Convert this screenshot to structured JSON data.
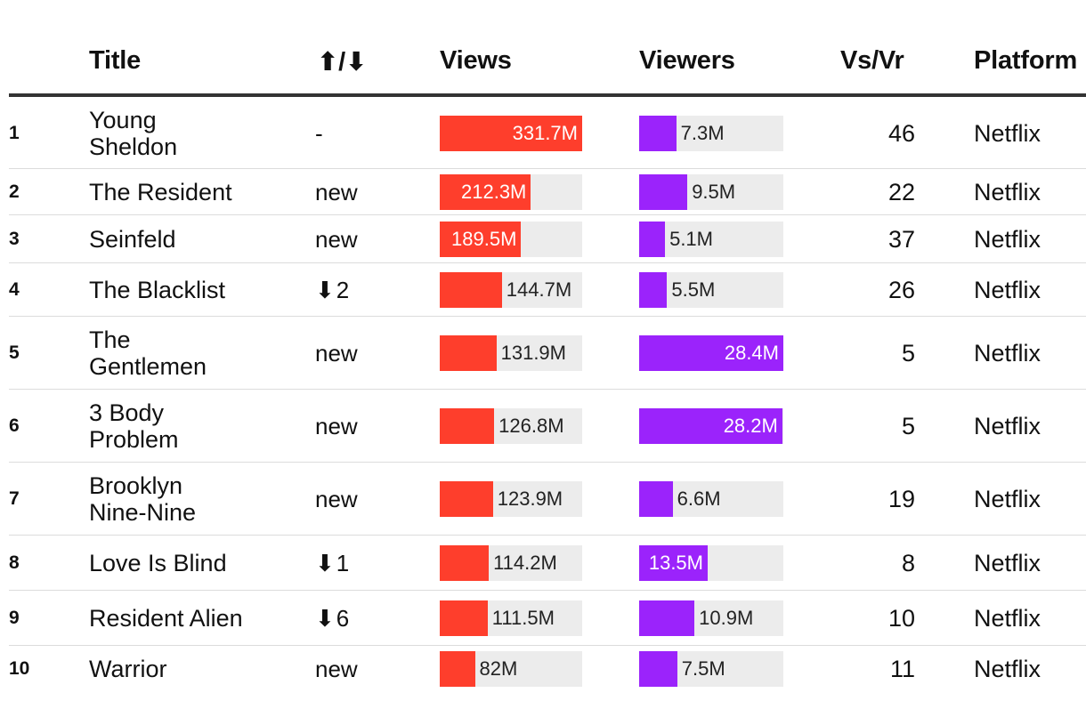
{
  "chart_data": {
    "type": "table",
    "columns": [
      "",
      "Title",
      "⬆/⬇",
      "Views",
      "Viewers",
      "Vs/Vr",
      "Platform"
    ],
    "views_max": 331.7,
    "viewers_max": 28.4,
    "colors": {
      "views": "#fe3e2c",
      "viewers": "#9b23fb",
      "track": "#ececec"
    },
    "rows": [
      {
        "rank": "1",
        "title": [
          "Young",
          "Sheldon"
        ],
        "change": "-",
        "change_dir": "",
        "views": 331.7,
        "views_label": "331.7M",
        "viewers": 7.3,
        "viewers_label": "7.3M",
        "ratio": "46",
        "platform": "Netflix"
      },
      {
        "rank": "2",
        "title": [
          "The Resident"
        ],
        "change": "new",
        "change_dir": "",
        "views": 212.3,
        "views_label": "212.3M",
        "viewers": 9.5,
        "viewers_label": "9.5M",
        "ratio": "22",
        "platform": "Netflix"
      },
      {
        "rank": "3",
        "title": [
          "Seinfeld"
        ],
        "change": "new",
        "change_dir": "",
        "views": 189.5,
        "views_label": "189.5M",
        "viewers": 5.1,
        "viewers_label": "5.1M",
        "ratio": "37",
        "platform": "Netflix"
      },
      {
        "rank": "4",
        "title": [
          "The Blacklist"
        ],
        "change": "2",
        "change_dir": "down",
        "views": 144.7,
        "views_label": "144.7M",
        "viewers": 5.5,
        "viewers_label": "5.5M",
        "ratio": "26",
        "platform": "Netflix"
      },
      {
        "rank": "5",
        "title": [
          "The",
          "Gentlemen"
        ],
        "change": "new",
        "change_dir": "",
        "views": 131.9,
        "views_label": "131.9M",
        "viewers": 28.4,
        "viewers_label": "28.4M",
        "ratio": "5",
        "platform": "Netflix"
      },
      {
        "rank": "6",
        "title": [
          "3 Body",
          "Problem"
        ],
        "change": "new",
        "change_dir": "",
        "views": 126.8,
        "views_label": "126.8M",
        "viewers": 28.2,
        "viewers_label": "28.2M",
        "ratio": "5",
        "platform": "Netflix"
      },
      {
        "rank": "7",
        "title": [
          "Brooklyn",
          "Nine-Nine"
        ],
        "change": "new",
        "change_dir": "",
        "views": 123.9,
        "views_label": "123.9M",
        "viewers": 6.6,
        "viewers_label": "6.6M",
        "ratio": "19",
        "platform": "Netflix"
      },
      {
        "rank": "8",
        "title": [
          "Love Is Blind"
        ],
        "change": "1",
        "change_dir": "down",
        "views": 114.2,
        "views_label": "114.2M",
        "viewers": 13.5,
        "viewers_label": "13.5M",
        "ratio": "8",
        "platform": "Netflix"
      },
      {
        "rank": "9",
        "title": [
          "Resident Alien"
        ],
        "change": "6",
        "change_dir": "down",
        "views": 111.5,
        "views_label": "111.5M",
        "viewers": 10.9,
        "viewers_label": "10.9M",
        "ratio": "10",
        "platform": "Netflix"
      },
      {
        "rank": "10",
        "title": [
          "Warrior"
        ],
        "change": "new",
        "change_dir": "",
        "views": 82,
        "views_label": "82M",
        "viewers": 7.5,
        "viewers_label": "7.5M",
        "ratio": "11",
        "platform": "Netflix"
      }
    ]
  }
}
